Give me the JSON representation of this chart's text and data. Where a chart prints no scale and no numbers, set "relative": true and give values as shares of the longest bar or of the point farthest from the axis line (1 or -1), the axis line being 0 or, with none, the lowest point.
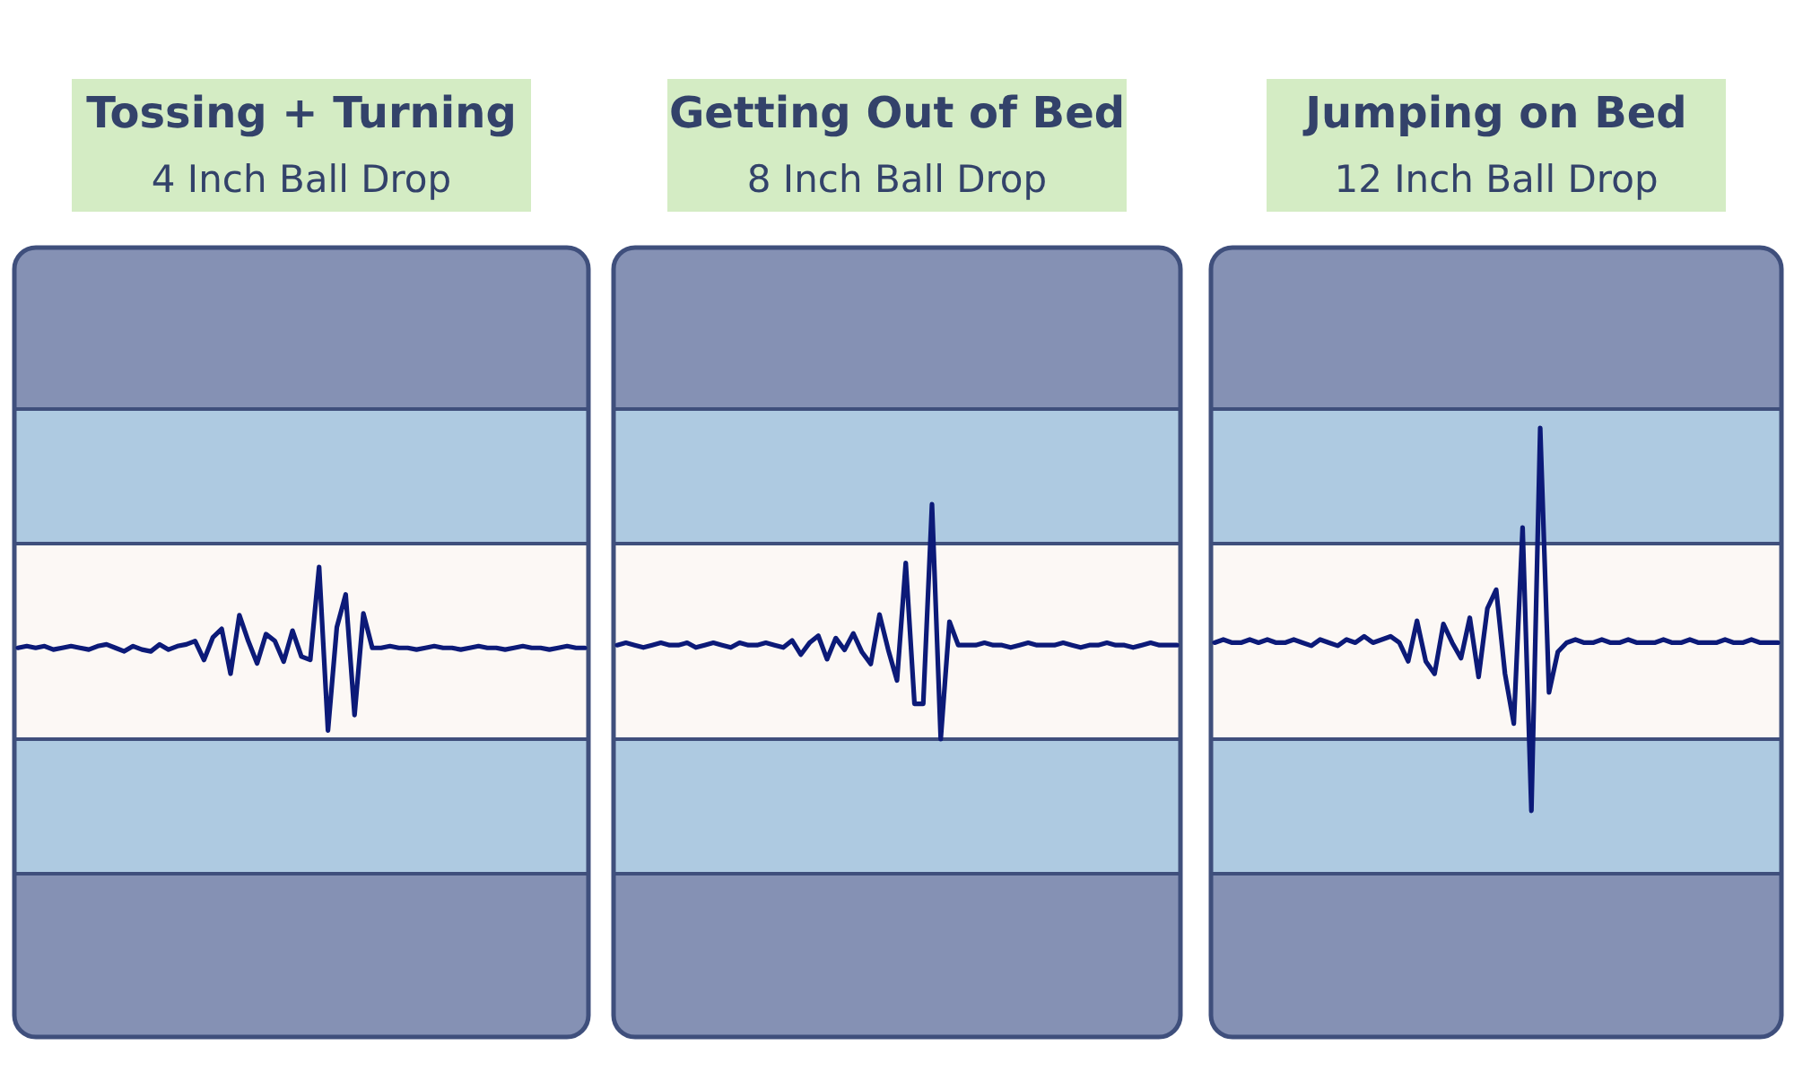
{
  "chart_data": [
    {
      "type": "line",
      "title": "Tossing + Turning",
      "subtitle": "4 Inch Ball Drop",
      "relative": true,
      "categories": [
        null,
        null,
        null,
        null,
        null,
        null,
        null,
        null,
        null,
        null,
        null,
        null,
        null,
        null,
        null,
        null,
        null,
        null,
        null,
        null,
        null,
        null,
        null,
        null,
        null,
        null,
        null,
        null,
        null,
        null,
        null,
        null,
        null,
        null,
        null,
        null,
        null,
        null,
        null,
        null,
        null,
        null,
        null,
        null,
        null,
        null,
        null,
        null,
        null,
        null,
        null,
        null,
        null,
        null,
        null,
        null,
        null,
        null,
        null,
        null,
        null,
        null,
        null,
        null,
        null
      ],
      "series": [
        {
          "color": "#0c1a78",
          "values": [
            0.53,
            0.54,
            0.53,
            0.54,
            0.52,
            0.53,
            0.54,
            0.53,
            0.52,
            0.54,
            0.55,
            0.53,
            0.51,
            0.54,
            0.52,
            0.51,
            0.55,
            0.52,
            0.54,
            0.55,
            0.57,
            0.46,
            0.59,
            0.64,
            0.38,
            0.72,
            0.57,
            0.44,
            0.61,
            0.57,
            0.45,
            0.63,
            0.48,
            0.46,
            1,
            0.05,
            0.65,
            0.84,
            0.14,
            0.73,
            0.53,
            0.53,
            0.54,
            0.53,
            0.53,
            0.52,
            0.53,
            0.54,
            0.53,
            0.53,
            0.52,
            0.53,
            0.54,
            0.53,
            0.53,
            0.52,
            0.53,
            0.54,
            0.53,
            0.53,
            0.52,
            0.53,
            0.54,
            0.53,
            0.53
          ]
        }
      ]
    },
    {
      "type": "line",
      "title": "Getting Out of Bed",
      "subtitle": "8 Inch Ball Drop",
      "relative": true,
      "categories": [
        null,
        null,
        null,
        null,
        null,
        null,
        null,
        null,
        null,
        null,
        null,
        null,
        null,
        null,
        null,
        null,
        null,
        null,
        null,
        null,
        null,
        null,
        null,
        null,
        null,
        null,
        null,
        null,
        null,
        null,
        null,
        null,
        null,
        null,
        null,
        null,
        null,
        null,
        null,
        null,
        null,
        null,
        null,
        null,
        null,
        null,
        null,
        null,
        null,
        null,
        null,
        null,
        null,
        null,
        null,
        null,
        null,
        null,
        null,
        null,
        null,
        null,
        null,
        null,
        null
      ],
      "series": [
        {
          "color": "#0c1a78",
          "values": [
            0.4,
            0.41,
            0.4,
            0.39,
            0.4,
            0.41,
            0.4,
            0.4,
            0.41,
            0.39,
            0.4,
            0.41,
            0.4,
            0.39,
            0.41,
            0.4,
            0.4,
            0.41,
            0.4,
            0.39,
            0.42,
            0.36,
            0.41,
            0.44,
            0.34,
            0.43,
            0.38,
            0.45,
            0.37,
            0.32,
            0.53,
            0.38,
            0.25,
            0.75,
            0.15,
            0.15,
            1,
            0,
            0.5,
            0.4,
            0.4,
            0.4,
            0.41,
            0.4,
            0.4,
            0.39,
            0.4,
            0.41,
            0.4,
            0.4,
            0.4,
            0.41,
            0.4,
            0.39,
            0.4,
            0.4,
            0.41,
            0.4,
            0.4,
            0.39,
            0.4,
            0.41,
            0.4,
            0.4,
            0.4
          ]
        }
      ]
    },
    {
      "type": "line",
      "title": "Jumping on Bed",
      "subtitle": "12 Inch Ball Drop",
      "relative": true,
      "categories": [
        null,
        null,
        null,
        null,
        null,
        null,
        null,
        null,
        null,
        null,
        null,
        null,
        null,
        null,
        null,
        null,
        null,
        null,
        null,
        null,
        null,
        null,
        null,
        null,
        null,
        null,
        null,
        null,
        null,
        null,
        null,
        null,
        null,
        null,
        null,
        null,
        null,
        null,
        null,
        null,
        null,
        null,
        null,
        null,
        null,
        null,
        null,
        null,
        null,
        null,
        null,
        null,
        null,
        null,
        null,
        null,
        null,
        null,
        null,
        null,
        null,
        null,
        null,
        null,
        null
      ],
      "series": [
        {
          "color": "#0c1a78",
          "values": [
            0.31,
            0.32,
            0.31,
            0.31,
            0.32,
            0.31,
            0.32,
            0.31,
            0.31,
            0.32,
            0.31,
            0.3,
            0.32,
            0.31,
            0.3,
            0.32,
            0.31,
            0.33,
            0.31,
            0.32,
            0.33,
            0.31,
            0.25,
            0.38,
            0.25,
            0.21,
            0.37,
            0.31,
            0.26,
            0.39,
            0.2,
            0.42,
            0.48,
            0.21,
            0.05,
            0.68,
            -0.23,
            1,
            0.15,
            0.28,
            0.31,
            0.32,
            0.31,
            0.31,
            0.32,
            0.31,
            0.31,
            0.32,
            0.31,
            0.31,
            0.31,
            0.32,
            0.31,
            0.31,
            0.32,
            0.31,
            0.31,
            0.31,
            0.32,
            0.31,
            0.31,
            0.32,
            0.31,
            0.31,
            0.31
          ]
        }
      ]
    }
  ]
}
